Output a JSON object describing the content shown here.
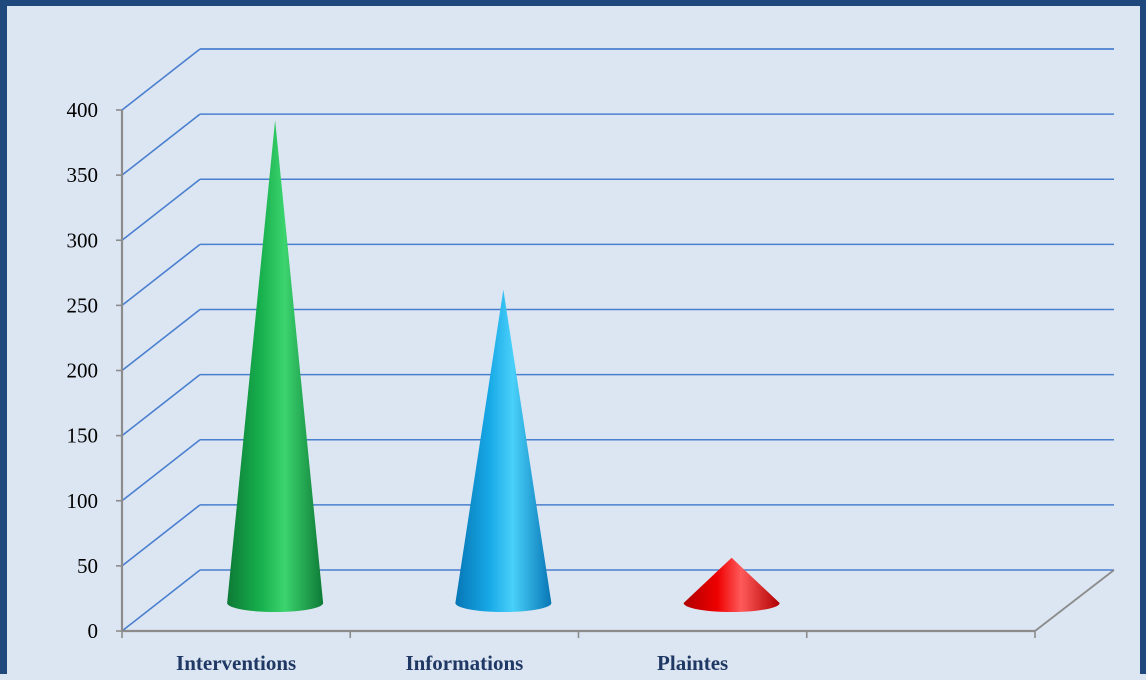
{
  "chart_data": {
    "type": "bar",
    "bar_shape": "cone",
    "style": "3d",
    "categories": [
      "Interventions",
      "Informations",
      "Plaintes",
      ""
    ],
    "values": [
      378,
      248,
      42,
      null
    ],
    "ylim": [
      0,
      400
    ],
    "yticks": [
      "0",
      "50",
      "100",
      "150",
      "200",
      "250",
      "300",
      "350",
      "400"
    ],
    "title": "",
    "xlabel": "",
    "ylabel": "",
    "grid": true,
    "legend": "none"
  },
  "colors": {
    "background": "#dce6f2",
    "frame": "#1f497d",
    "gridline": "#4a7fcf",
    "axis": "#8c8c8c",
    "cones": [
      {
        "light": "#3cd46e",
        "dark": "#0d7a36",
        "mid": "#17b04d"
      },
      {
        "light": "#49d0fa",
        "dark": "#0776b5",
        "mid": "#17a8e6"
      },
      {
        "light": "#ff5a5a",
        "dark": "#b00000",
        "mid": "#ee0000"
      }
    ]
  }
}
